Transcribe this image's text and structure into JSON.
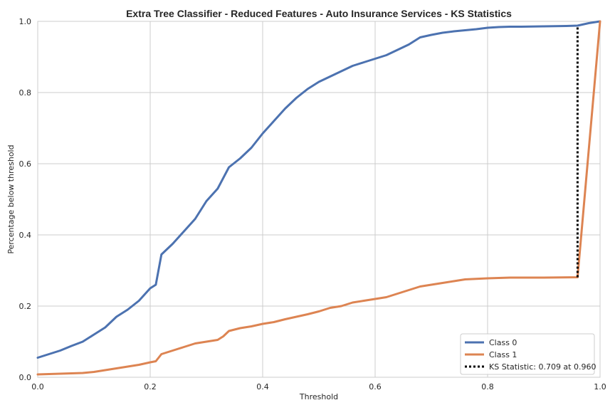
{
  "chart_data": {
    "type": "line",
    "title": "Extra Tree Classifier - Reduced Features - Auto Insurance Services - KS Statistics",
    "xlabel": "Threshold",
    "ylabel": "Percentage below threshold",
    "xlim": [
      0,
      1
    ],
    "ylim": [
      0,
      1
    ],
    "x_ticks": [
      "0.0",
      "0.2",
      "0.4",
      "0.6",
      "0.8",
      "1.0"
    ],
    "y_ticks": [
      "0.0",
      "0.2",
      "0.4",
      "0.6",
      "0.8",
      "1.0"
    ],
    "grid": true,
    "legend_position": "bottom-right",
    "series": [
      {
        "name": "Class 0",
        "color": "#4c72b0",
        "points": [
          [
            0,
            0.055
          ],
          [
            0.02,
            0.065
          ],
          [
            0.04,
            0.075
          ],
          [
            0.06,
            0.088
          ],
          [
            0.08,
            0.1
          ],
          [
            0.1,
            0.12
          ],
          [
            0.12,
            0.14
          ],
          [
            0.14,
            0.17
          ],
          [
            0.16,
            0.19
          ],
          [
            0.18,
            0.215
          ],
          [
            0.2,
            0.25
          ],
          [
            0.21,
            0.26
          ],
          [
            0.22,
            0.345
          ],
          [
            0.24,
            0.375
          ],
          [
            0.26,
            0.41
          ],
          [
            0.28,
            0.445
          ],
          [
            0.3,
            0.495
          ],
          [
            0.32,
            0.53
          ],
          [
            0.34,
            0.59
          ],
          [
            0.36,
            0.615
          ],
          [
            0.38,
            0.645
          ],
          [
            0.4,
            0.685
          ],
          [
            0.42,
            0.72
          ],
          [
            0.44,
            0.755
          ],
          [
            0.46,
            0.785
          ],
          [
            0.48,
            0.81
          ],
          [
            0.5,
            0.83
          ],
          [
            0.52,
            0.845
          ],
          [
            0.54,
            0.86
          ],
          [
            0.56,
            0.875
          ],
          [
            0.58,
            0.885
          ],
          [
            0.6,
            0.895
          ],
          [
            0.62,
            0.905
          ],
          [
            0.64,
            0.92
          ],
          [
            0.66,
            0.935
          ],
          [
            0.68,
            0.955
          ],
          [
            0.7,
            0.962
          ],
          [
            0.72,
            0.968
          ],
          [
            0.74,
            0.972
          ],
          [
            0.76,
            0.975
          ],
          [
            0.78,
            0.978
          ],
          [
            0.8,
            0.982
          ],
          [
            0.82,
            0.984
          ],
          [
            0.84,
            0.985
          ],
          [
            0.86,
            0.985
          ],
          [
            0.9,
            0.986
          ],
          [
            0.94,
            0.987
          ],
          [
            0.96,
            0.988
          ],
          [
            0.98,
            0.995
          ],
          [
            1.0,
            1.0
          ]
        ]
      },
      {
        "name": "Class 1",
        "color": "#dd8452",
        "points": [
          [
            0,
            0.008
          ],
          [
            0.04,
            0.01
          ],
          [
            0.08,
            0.012
          ],
          [
            0.1,
            0.015
          ],
          [
            0.12,
            0.02
          ],
          [
            0.14,
            0.025
          ],
          [
            0.16,
            0.03
          ],
          [
            0.18,
            0.035
          ],
          [
            0.2,
            0.042
          ],
          [
            0.21,
            0.045
          ],
          [
            0.22,
            0.065
          ],
          [
            0.24,
            0.075
          ],
          [
            0.26,
            0.085
          ],
          [
            0.28,
            0.095
          ],
          [
            0.3,
            0.1
          ],
          [
            0.32,
            0.105
          ],
          [
            0.33,
            0.115
          ],
          [
            0.34,
            0.13
          ],
          [
            0.36,
            0.138
          ],
          [
            0.38,
            0.143
          ],
          [
            0.4,
            0.15
          ],
          [
            0.42,
            0.155
          ],
          [
            0.44,
            0.163
          ],
          [
            0.46,
            0.17
          ],
          [
            0.48,
            0.177
          ],
          [
            0.5,
            0.185
          ],
          [
            0.52,
            0.195
          ],
          [
            0.54,
            0.2
          ],
          [
            0.56,
            0.21
          ],
          [
            0.58,
            0.215
          ],
          [
            0.6,
            0.22
          ],
          [
            0.62,
            0.225
          ],
          [
            0.64,
            0.235
          ],
          [
            0.66,
            0.245
          ],
          [
            0.68,
            0.255
          ],
          [
            0.7,
            0.26
          ],
          [
            0.72,
            0.265
          ],
          [
            0.74,
            0.27
          ],
          [
            0.76,
            0.275
          ],
          [
            0.8,
            0.278
          ],
          [
            0.84,
            0.28
          ],
          [
            0.9,
            0.28
          ],
          [
            0.96,
            0.281
          ],
          [
            1.0,
            1.0
          ]
        ]
      }
    ],
    "ks_statistic": {
      "label": "KS Statistic: 0.709 at 0.960",
      "x": 0.96,
      "y_low": 0.281,
      "y_high": 0.988,
      "color": "#000000"
    }
  }
}
